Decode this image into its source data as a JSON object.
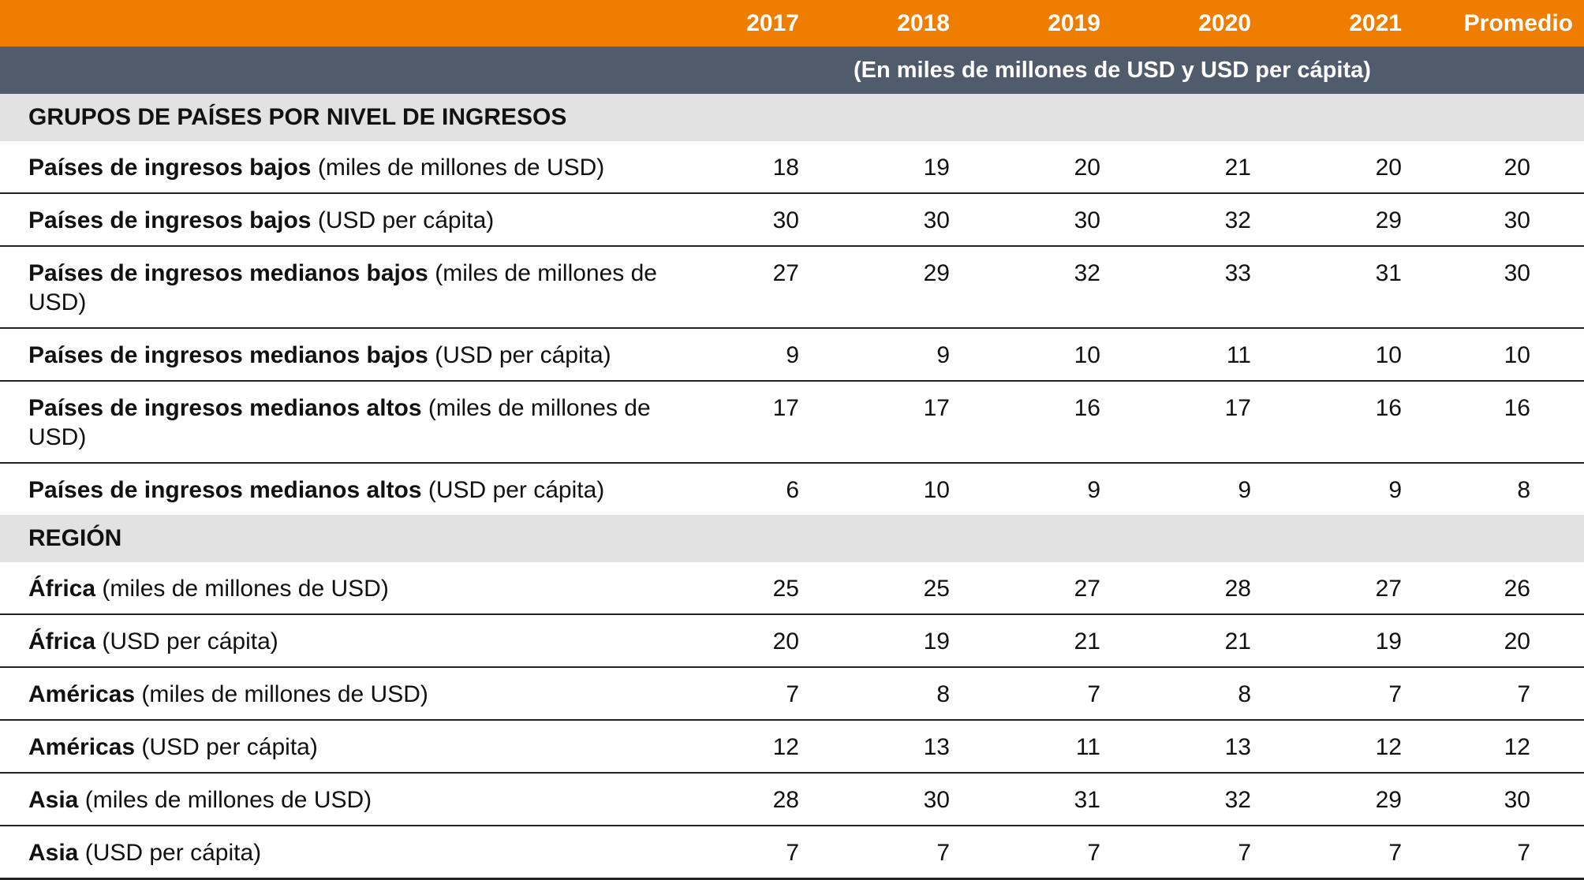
{
  "table": {
    "columns": [
      "2017",
      "2018",
      "2019",
      "2020",
      "2021",
      "Promedio"
    ],
    "subtitle": "(En miles de millones de USD y USD per cápita)",
    "colors": {
      "header": "#ef7d00",
      "subheader": "#505c6c",
      "section": "#e2e2e2"
    },
    "sections": [
      {
        "title": "GRUPOS DE PAÍSES POR NIVEL DE INGRESOS",
        "rows": [
          {
            "name": "Países de ingresos bajos",
            "unit": " (miles de millones de USD)",
            "values": [
              "18",
              "19",
              "20",
              "21",
              "20",
              "20"
            ]
          },
          {
            "name": "Países de ingresos bajos",
            "unit": " (USD per cápita)",
            "values": [
              "30",
              "30",
              "30",
              "32",
              "29",
              "30"
            ]
          },
          {
            "name": "Países de ingresos medianos bajos",
            "unit": " (miles de millones de USD)",
            "values": [
              "27",
              "29",
              "32",
              "33",
              "31",
              "30"
            ]
          },
          {
            "name": "Países de ingresos medianos bajos",
            "unit": " (USD per cápita)",
            "values": [
              "9",
              "9",
              "10",
              "11",
              "10",
              "10"
            ]
          },
          {
            "name": "Países de ingresos medianos altos",
            "unit": " (miles de millones de USD)",
            "values": [
              "17",
              "17",
              "16",
              "17",
              "16",
              "16"
            ]
          },
          {
            "name": "Países de ingresos medianos altos",
            "unit": " (USD per cápita)",
            "values": [
              "6",
              "10",
              "9",
              "9",
              "9",
              "8"
            ]
          }
        ]
      },
      {
        "title": "REGIÓN",
        "rows": [
          {
            "name": "África",
            "unit": " (miles de millones de USD)",
            "values": [
              "25",
              "25",
              "27",
              "28",
              "27",
              "26"
            ]
          },
          {
            "name": "África",
            "unit": " (USD per cápita)",
            "values": [
              "20",
              "19",
              "21",
              "21",
              "19",
              "20"
            ]
          },
          {
            "name": "Américas",
            "unit": " (miles de millones de USD)",
            "values": [
              "7",
              "8",
              "7",
              "8",
              "7",
              "7"
            ]
          },
          {
            "name": "Américas",
            "unit": " (USD per cápita)",
            "values": [
              "12",
              "13",
              "11",
              "13",
              "12",
              "12"
            ]
          },
          {
            "name": "Asia",
            "unit": " (miles de millones de USD)",
            "values": [
              "28",
              "30",
              "31",
              "32",
              "29",
              "30"
            ]
          },
          {
            "name": "Asia",
            "unit": " (USD per cápita)",
            "values": [
              "7",
              "7",
              "7",
              "7",
              "7",
              "7"
            ]
          }
        ]
      }
    ]
  }
}
